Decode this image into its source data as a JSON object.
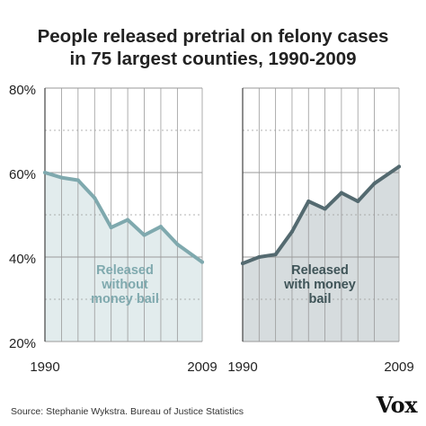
{
  "title": {
    "line1": "People released pretrial on felony cases",
    "line2": "in 75 largest counties, 1990-2009"
  },
  "source": "Source: Stephanie Wykstra. Bureau of Justice Statistics",
  "logo": "Vox",
  "colors": {
    "left_line": "#7fa9ae",
    "left_fill": "#e2eced",
    "left_label": "#7fa9ae",
    "right_line": "#546a70",
    "right_fill": "#d6dcde",
    "right_label": "#3f5458",
    "grid": "#9a9a9a",
    "axis": "#444444",
    "text": "#222222"
  },
  "chart_data": [
    {
      "type": "area",
      "label": [
        "Released",
        "without",
        "money bail"
      ],
      "x": [
        1990,
        1992,
        1994,
        1996,
        1998,
        2000,
        2002,
        2004,
        2006,
        2009
      ],
      "values": [
        60,
        58.8,
        58.2,
        54,
        47,
        48.8,
        45.2,
        47.2,
        43,
        38.8
      ],
      "x_tick_labels": [
        "1990",
        "2009"
      ],
      "y_tick_labels": [
        "80%",
        "60%",
        "40%",
        "20%"
      ],
      "ylim": [
        20,
        80
      ],
      "grid": true
    },
    {
      "type": "area",
      "label": [
        "Released",
        "with money",
        "bail"
      ],
      "x": [
        1990,
        1992,
        1994,
        1996,
        1998,
        2000,
        2002,
        2004,
        2006,
        2009
      ],
      "values": [
        38.5,
        40,
        40.6,
        46,
        53.2,
        51.4,
        55.2,
        53.2,
        57.4,
        61.4
      ],
      "x_tick_labels": [
        "1990",
        "2009"
      ],
      "ylim": [
        20,
        80
      ],
      "grid": true
    }
  ]
}
